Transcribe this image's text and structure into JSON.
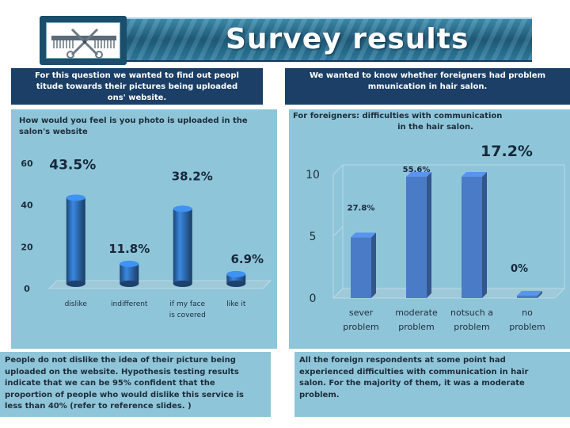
{
  "slide": {
    "title": "Survey results",
    "logo_icon": "scissors-comb-icon"
  },
  "left": {
    "header_lines": [
      "For this question we wanted to find out peopl",
      "titude towards their pictures being uploaded",
      "ons' website."
    ],
    "question_lines": [
      "How would you feel is you photo is uploaded in the",
      "salon's website"
    ],
    "note_lines": [
      "People do not dislike the idea of their picture being",
      "uploaded on the website. Hypothesis testing results",
      "indicate that we can be 95% confident that the",
      "proportion of people who would dislike this service is",
      "less than 40% (refer to reference slides. )"
    ]
  },
  "right": {
    "header_lines": [
      "We wanted to know whether foreigners had problem",
      "mmunication in hair salon."
    ],
    "question_lines": [
      "For foreigners: difficulties with communication",
      "in the hair salon."
    ],
    "note_lines": [
      "All the foreign respondents at some point had",
      "experienced difficulties with communication in hair",
      "salon. For the majority of them, it was a moderate",
      "problem."
    ]
  },
  "chart_data": [
    {
      "type": "bar",
      "categories": [
        "dislike",
        "indifferent",
        "if my face is covered",
        "like it"
      ],
      "category_lines": [
        [
          "dislike"
        ],
        [
          "indifferent"
        ],
        [
          "if my face",
          "is covered"
        ],
        [
          "like it"
        ]
      ],
      "values": [
        43.5,
        11.8,
        38.2,
        6.9
      ],
      "data_labels": [
        "43.5%",
        "11.8%",
        "38.2%",
        "6.9%"
      ],
      "ylim": [
        0,
        60
      ],
      "yticks": [
        0,
        20,
        40,
        60
      ],
      "style": "3d-cylinder",
      "color": "#2e6db4"
    },
    {
      "type": "bar",
      "categories": [
        "sever problem",
        "moderate problem",
        "notsuch a problem",
        "no problem"
      ],
      "category_lines": [
        [
          "sever",
          "problem"
        ],
        [
          "moderate",
          "problem"
        ],
        [
          "notsuch a",
          "problem"
        ],
        [
          "no",
          "problem"
        ]
      ],
      "values": [
        27.8,
        55.6,
        17.2,
        0
      ],
      "data_labels": [
        "27.8%",
        "55.6%",
        "17.2%",
        "0%"
      ],
      "ylim": [
        0,
        10
      ],
      "yticks": [
        0,
        5,
        10
      ],
      "style": "3d-box",
      "color": "#4a7bc6"
    }
  ]
}
